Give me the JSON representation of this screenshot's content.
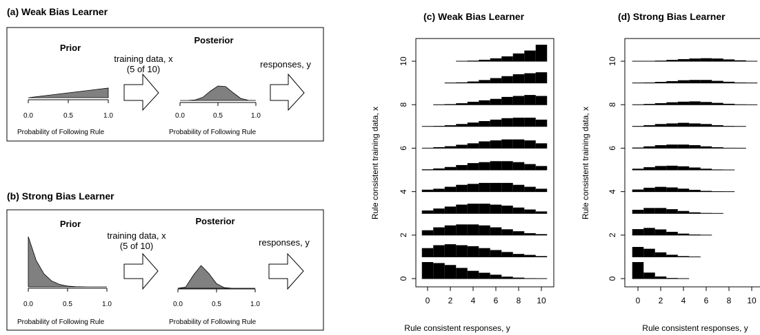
{
  "panels": {
    "a": {
      "title": "(a) Weak Bias Learner",
      "prior_label": "Prior",
      "posterior_label": "Posterior",
      "training_line1": "training data, x",
      "training_line2": "(5 of 10)",
      "responses_label": "responses, y",
      "axis_label": "Probability of Following Rule",
      "ticks": [
        "0.0",
        "0.5",
        "1.0"
      ]
    },
    "b": {
      "title": "(b) Strong Bias Learner",
      "prior_label": "Prior",
      "posterior_label": "Posterior",
      "training_line1": "training data, x",
      "training_line2": "(5 of 10)",
      "responses_label": "responses, y",
      "axis_label": "Probability of Following Rule",
      "ticks": [
        "0.0",
        "0.5",
        "1.0"
      ]
    }
  },
  "chart_data": [
    {
      "type": "distribution",
      "panel": "a-prior",
      "distribution": "Beta(2,1)",
      "x": [
        0.0,
        0.5,
        1.0
      ],
      "density": [
        0.0,
        1.0,
        2.0
      ],
      "xlim": [
        0,
        1
      ],
      "xticks": [
        "0.0",
        "0.5",
        "1.0"
      ],
      "xlabel": "Probability of Following Rule"
    },
    {
      "type": "distribution",
      "panel": "a-posterior",
      "distribution": "Beta(7,6)",
      "x": [
        0.0,
        0.1,
        0.2,
        0.3,
        0.4,
        0.5,
        0.6,
        0.7,
        0.8,
        0.9,
        1.0
      ],
      "density": [
        0.0,
        0.0,
        0.1,
        0.6,
        1.8,
        2.8,
        2.7,
        1.5,
        0.4,
        0.03,
        0.0
      ],
      "xlim": [
        0,
        1
      ],
      "xticks": [
        "0.0",
        "0.5",
        "1.0"
      ],
      "xlabel": "Probability of Following Rule"
    },
    {
      "type": "distribution",
      "panel": "b-prior",
      "distribution": "Beta(1,7)",
      "x": [
        0.0,
        0.1,
        0.2,
        0.3,
        0.4,
        0.5,
        0.6,
        0.7,
        0.8,
        0.9,
        1.0
      ],
      "density": [
        7.0,
        3.7,
        1.8,
        0.8,
        0.33,
        0.11,
        0.03,
        0.005,
        0.0,
        0.0,
        0.0
      ],
      "xlim": [
        0,
        1
      ],
      "xticks": [
        "0.0",
        "0.5",
        "1.0"
      ],
      "xlabel": "Probability of Following Rule"
    },
    {
      "type": "distribution",
      "panel": "b-posterior",
      "distribution": "Beta(6,12)",
      "x": [
        0.0,
        0.1,
        0.2,
        0.3,
        0.4,
        0.5,
        0.6,
        0.7,
        0.8,
        0.9,
        1.0
      ],
      "density": [
        0.0,
        0.2,
        2.3,
        4.0,
        2.6,
        0.8,
        0.1,
        0.0,
        0.0,
        0.0,
        0.0
      ],
      "xlim": [
        0,
        1
      ],
      "xticks": [
        "0.0",
        "0.5",
        "1.0"
      ],
      "xlabel": "Probability of Following Rule"
    },
    {
      "type": "bar",
      "panel": "c",
      "title": "(c)  Weak Bias Learner",
      "xlabel": "Rule consistent responses, y",
      "ylabel": "Rule consistent training data, x",
      "x_values": [
        0,
        1,
        2,
        3,
        4,
        5,
        6,
        7,
        8,
        9,
        10
      ],
      "xticks": [
        "0",
        "2",
        "4",
        "6",
        "8",
        "10"
      ],
      "yticks": [
        "0",
        "2",
        "4",
        "6",
        "8",
        "10"
      ],
      "series": [
        {
          "x": 0,
          "values": [
            0.17,
            0.16,
            0.14,
            0.11,
            0.08,
            0.06,
            0.04,
            0.02,
            0.01,
            0.004,
            0.001
          ]
        },
        {
          "x": 1,
          "values": [
            0.09,
            0.12,
            0.13,
            0.12,
            0.11,
            0.09,
            0.07,
            0.05,
            0.03,
            0.02,
            0.008
          ]
        },
        {
          "x": 2,
          "values": [
            0.05,
            0.08,
            0.1,
            0.11,
            0.11,
            0.1,
            0.08,
            0.06,
            0.04,
            0.02,
            0.01
          ]
        },
        {
          "x": 3,
          "values": [
            0.03,
            0.05,
            0.07,
            0.09,
            0.1,
            0.1,
            0.09,
            0.08,
            0.06,
            0.04,
            0.02
          ]
        },
        {
          "x": 4,
          "values": [
            0.02,
            0.03,
            0.05,
            0.07,
            0.08,
            0.09,
            0.09,
            0.09,
            0.07,
            0.05,
            0.03
          ]
        },
        {
          "x": 5,
          "values": [
            0.006,
            0.015,
            0.03,
            0.05,
            0.07,
            0.08,
            0.09,
            0.09,
            0.08,
            0.06,
            0.04
          ]
        },
        {
          "x": 6,
          "values": [
            0.003,
            0.01,
            0.02,
            0.035,
            0.05,
            0.07,
            0.08,
            0.09,
            0.09,
            0.08,
            0.05
          ]
        },
        {
          "x": 7,
          "values": [
            0.001,
            0.005,
            0.012,
            0.025,
            0.04,
            0.055,
            0.07,
            0.085,
            0.09,
            0.09,
            0.07
          ]
        },
        {
          "x": 8,
          "values": [
            0.0,
            0.002,
            0.006,
            0.015,
            0.03,
            0.045,
            0.06,
            0.08,
            0.09,
            0.1,
            0.09
          ]
        },
        {
          "x": 9,
          "values": [
            0.0,
            0.0,
            0.002,
            0.006,
            0.015,
            0.03,
            0.05,
            0.07,
            0.09,
            0.1,
            0.11
          ]
        },
        {
          "x": 10,
          "values": [
            0.0,
            0.0,
            0.0,
            0.002,
            0.006,
            0.015,
            0.03,
            0.05,
            0.08,
            0.11,
            0.17
          ]
        }
      ]
    },
    {
      "type": "bar",
      "panel": "d",
      "title": "(d)  Strong Bias Learner",
      "xlabel": "Rule consistent responses, y",
      "ylabel": "Rule consistent training data, x",
      "x_values": [
        0,
        1,
        2,
        3,
        4,
        5,
        6,
        7,
        8,
        9,
        10
      ],
      "xticks": [
        "0",
        "2",
        "4",
        "6",
        "8",
        "10"
      ],
      "yticks": [
        "0",
        "2",
        "4",
        "6",
        "8",
        "10"
      ],
      "series": [
        {
          "x": 0,
          "values": [
            0.55,
            0.2,
            0.07,
            0.02,
            0.004,
            0.0,
            0.0,
            0.0,
            0.0,
            0.0,
            0.0
          ]
        },
        {
          "x": 1,
          "values": [
            0.33,
            0.27,
            0.15,
            0.07,
            0.025,
            0.006,
            0.0,
            0.0,
            0.0,
            0.0,
            0.0
          ]
        },
        {
          "x": 2,
          "values": [
            0.2,
            0.24,
            0.19,
            0.11,
            0.05,
            0.02,
            0.005,
            0.0,
            0.0,
            0.0,
            0.0
          ]
        },
        {
          "x": 3,
          "values": [
            0.12,
            0.18,
            0.18,
            0.14,
            0.08,
            0.035,
            0.012,
            0.003,
            0.0,
            0.0,
            0.0
          ]
        },
        {
          "x": 4,
          "values": [
            0.07,
            0.13,
            0.16,
            0.14,
            0.1,
            0.06,
            0.025,
            0.008,
            0.002,
            0.0,
            0.0
          ]
        },
        {
          "x": 5,
          "values": [
            0.04,
            0.09,
            0.13,
            0.14,
            0.12,
            0.08,
            0.04,
            0.015,
            0.004,
            0.0,
            0.0
          ]
        },
        {
          "x": 6,
          "values": [
            0.02,
            0.06,
            0.1,
            0.12,
            0.12,
            0.1,
            0.06,
            0.03,
            0.01,
            0.002,
            0.0
          ]
        },
        {
          "x": 7,
          "values": [
            0.012,
            0.04,
            0.08,
            0.1,
            0.12,
            0.1,
            0.08,
            0.04,
            0.015,
            0.004,
            0.0
          ]
        },
        {
          "x": 8,
          "values": [
            0.007,
            0.025,
            0.05,
            0.08,
            0.1,
            0.11,
            0.09,
            0.06,
            0.03,
            0.01,
            0.002
          ]
        },
        {
          "x": 9,
          "values": [
            0.004,
            0.015,
            0.035,
            0.06,
            0.09,
            0.1,
            0.1,
            0.07,
            0.04,
            0.015,
            0.004
          ]
        },
        {
          "x": 10,
          "values": [
            0.002,
            0.008,
            0.02,
            0.045,
            0.07,
            0.09,
            0.1,
            0.09,
            0.06,
            0.03,
            0.01
          ]
        }
      ]
    }
  ],
  "colors": {
    "fill": "#808080",
    "bar": "#000000",
    "frame": "#000000"
  }
}
